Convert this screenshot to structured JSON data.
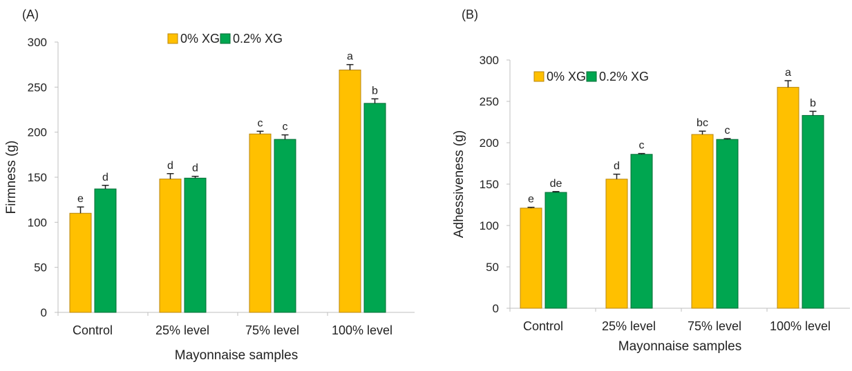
{
  "colors": {
    "series1": "#FFC000",
    "series2": "#00A650",
    "axis": "#BFBFBF",
    "text": "#222222"
  },
  "chart_data": [
    {
      "type": "bar",
      "panel_label": "(A)",
      "categories": [
        "Control",
        "25% level",
        "75% level",
        "100% level"
      ],
      "series": [
        {
          "name": "0% XG",
          "values": [
            110,
            148,
            198,
            269
          ],
          "errors": [
            7,
            6,
            3,
            6
          ],
          "letters": [
            "e",
            "d",
            "c",
            "a"
          ]
        },
        {
          "name": "0.2% XG",
          "values": [
            137,
            149,
            192,
            232
          ],
          "errors": [
            4,
            2,
            5,
            5
          ],
          "letters": [
            "d",
            "d",
            "c",
            "b"
          ]
        }
      ],
      "title": "",
      "xlabel": "Mayonnaise samples",
      "ylabel": "Firmness (g)",
      "ylim": [
        0,
        300
      ],
      "yticks": [
        "0",
        "50",
        "100",
        "150",
        "200",
        "250",
        "300"
      ],
      "legend": "top-center",
      "grid": false
    },
    {
      "type": "bar",
      "panel_label": "(B)",
      "categories": [
        "Control",
        "25% level",
        "75% level",
        "100% level"
      ],
      "series": [
        {
          "name": "0% XG",
          "values": [
            121,
            156,
            210,
            267
          ],
          "errors": [
            1,
            6,
            4,
            8
          ],
          "letters": [
            "e",
            "d",
            "bc",
            "a"
          ]
        },
        {
          "name": "0.2% XG",
          "values": [
            140,
            186,
            204,
            233
          ],
          "errors": [
            1,
            1,
            1,
            5
          ],
          "letters": [
            "de",
            "c",
            "c",
            "b"
          ]
        }
      ],
      "title": "",
      "xlabel": "Mayonnaise samples",
      "ylabel": "Adhessiveness (g)",
      "ylim": [
        0,
        300
      ],
      "yticks": [
        "0",
        "50",
        "100",
        "150",
        "200",
        "250",
        "300"
      ],
      "legend": "top-left",
      "grid": false
    }
  ]
}
